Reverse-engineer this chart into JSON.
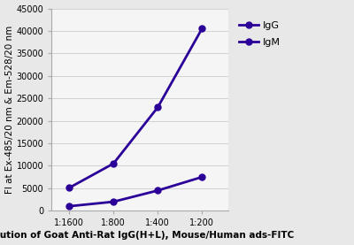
{
  "x_labels": [
    "1:1600",
    "1:800",
    "1:400",
    "1:200"
  ],
  "x_positions": [
    0,
    1,
    2,
    3
  ],
  "IgG_values": [
    5100,
    10500,
    23000,
    40500
  ],
  "IgM_values": [
    1000,
    2000,
    4500,
    7500
  ],
  "IgG_color": "#2B0099",
  "IgM_color": "#2B0099",
  "ylabel": "FI at Ex-485/20 nm & Em-528/20 nm",
  "xlabel": "Dilution of Goat Anti-Rat IgG(H+L), Mouse/Human ads-FITC",
  "ylim": [
    0,
    45000
  ],
  "yticks": [
    0,
    5000,
    10000,
    15000,
    20000,
    25000,
    30000,
    35000,
    40000,
    45000
  ],
  "legend_labels": [
    "IgG",
    "IgM"
  ],
  "background_color": "#e8e8e8",
  "plot_bg_color": "#f5f5f5",
  "axis_fontsize": 7.5,
  "tick_fontsize": 7,
  "legend_fontsize": 8,
  "linewidth": 2.0,
  "markersize": 5
}
